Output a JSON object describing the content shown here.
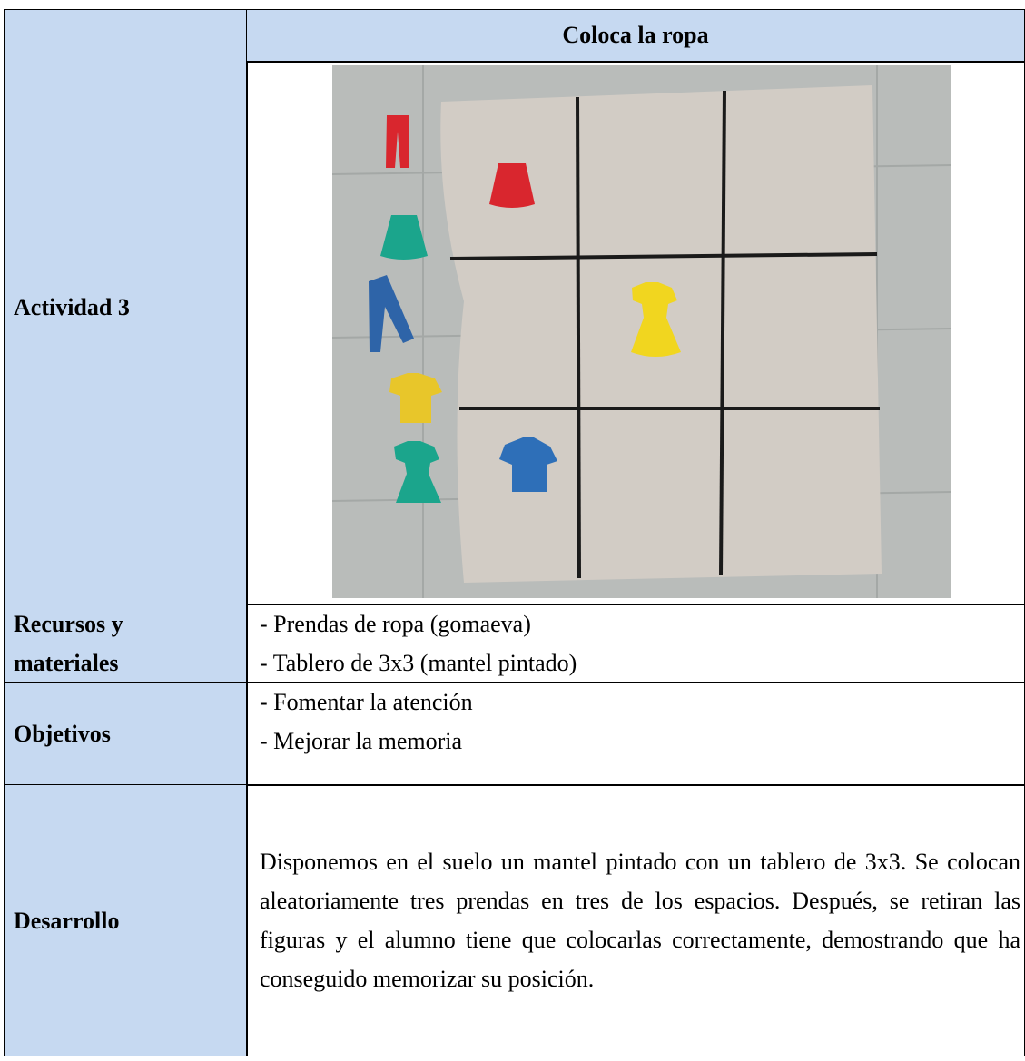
{
  "table": {
    "header": {
      "title": "Coloca la ropa"
    },
    "activity": {
      "label": "Actividad 3"
    },
    "rows": [
      {
        "label": [
          "Recursos y",
          "materiales"
        ],
        "items": [
          "- Prendas de ropa (gomaeva)",
          "- Tablero de 3x3 (mantel pintado)"
        ]
      },
      {
        "label": [
          "Objetivos"
        ],
        "items": [
          "- Fomentar la atención",
          "- Mejorar la memoria"
        ]
      },
      {
        "label": [
          "Desarrollo"
        ],
        "text": "Disponemos en el suelo un mantel pintado con un tablero de 3x3. Se colocan aleatoriamente tres prendas en tres de los espacios. Después, se retiran las figuras y el alumno tiene que colocarlas correctamente, demostrando que ha conseguido memorizar su posición."
      }
    ]
  }
}
